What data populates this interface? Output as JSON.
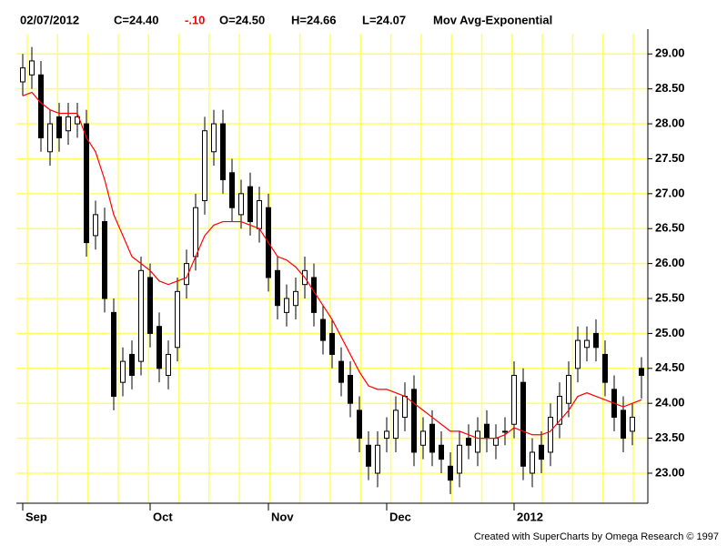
{
  "chart_data": {
    "type": "candlestick",
    "header": {
      "date": "02/07/2012",
      "close": "C=24.40",
      "change": "-.10",
      "open": "O=24.50",
      "high": "H=24.66",
      "low": "L=24.07",
      "study": "Mov Avg-Exponential"
    },
    "footer": "Created with SuperCharts by Omega Research © 1997",
    "categories": [
      "Sep",
      null,
      null,
      null,
      null,
      null,
      null,
      null,
      null,
      null,
      null,
      null,
      null,
      null,
      "Oct",
      null,
      null,
      null,
      null,
      null,
      null,
      null,
      null,
      null,
      null,
      null,
      null,
      "Nov",
      null,
      null,
      null,
      null,
      null,
      null,
      null,
      null,
      null,
      null,
      null,
      null,
      "Dec",
      null,
      null,
      null,
      null,
      null,
      null,
      null,
      null,
      null,
      null,
      null,
      null,
      null,
      "2012",
      null,
      null,
      null,
      null,
      null,
      null,
      null,
      null,
      null,
      null,
      null,
      null,
      null,
      null
    ],
    "open": [
      28.6,
      28.7,
      28.7,
      27.6,
      28.1,
      27.9,
      28.0,
      28.0,
      26.4,
      26.6,
      25.3,
      24.3,
      24.7,
      24.6,
      25.8,
      25.1,
      24.4,
      24.8,
      25.7,
      26.1,
      26.9,
      27.6,
      28.0,
      27.3,
      26.7,
      27.1,
      26.5,
      26.8,
      25.9,
      25.3,
      25.4,
      25.7,
      25.8,
      25.2,
      25.0,
      24.6,
      24.4,
      23.9,
      23.4,
      23.0,
      23.5,
      23.5,
      23.8,
      24.2,
      23.4,
      23.7,
      23.4,
      23.1,
      23.0,
      23.5,
      23.3,
      23.7,
      23.4,
      23.6,
      23.7,
      24.3,
      23.0,
      23.4,
      23.3,
      23.7,
      24.0,
      24.5,
      24.8,
      25.0,
      24.7,
      24.2,
      23.9,
      23.6,
      24.5
    ],
    "high": [
      29.0,
      29.1,
      28.9,
      28.2,
      28.3,
      28.3,
      28.3,
      28.2,
      26.9,
      26.8,
      25.5,
      24.8,
      24.9,
      26.1,
      26.0,
      25.3,
      24.9,
      25.8,
      26.2,
      27.0,
      28.1,
      28.2,
      28.2,
      27.5,
      27.2,
      27.3,
      27.1,
      27.0,
      26.1,
      25.7,
      25.8,
      26.1,
      26.0,
      25.4,
      25.2,
      24.8,
      24.6,
      24.1,
      23.6,
      23.6,
      23.8,
      24.1,
      24.3,
      24.4,
      23.8,
      23.9,
      23.6,
      23.3,
      23.6,
      23.7,
      23.8,
      23.9,
      23.7,
      23.8,
      24.6,
      24.5,
      23.5,
      23.6,
      24.0,
      24.3,
      24.6,
      25.1,
      25.1,
      25.2,
      24.9,
      24.4,
      24.1,
      24.0,
      24.66
    ],
    "low": [
      28.4,
      28.5,
      27.6,
      27.4,
      27.6,
      27.7,
      27.8,
      26.1,
      26.2,
      25.3,
      23.9,
      24.1,
      24.2,
      24.4,
      24.8,
      24.3,
      24.2,
      24.6,
      25.5,
      25.9,
      26.7,
      27.4,
      27.0,
      26.6,
      26.5,
      26.4,
      26.3,
      25.6,
      25.2,
      25.1,
      25.2,
      25.5,
      25.1,
      24.7,
      24.5,
      24.1,
      23.8,
      23.3,
      22.9,
      22.8,
      23.3,
      23.3,
      23.6,
      23.1,
      23.2,
      23.1,
      23.0,
      22.7,
      22.8,
      23.2,
      23.1,
      23.3,
      23.2,
      23.4,
      23.5,
      22.9,
      22.8,
      23.0,
      23.1,
      23.5,
      23.8,
      24.3,
      24.6,
      24.6,
      24.1,
      23.6,
      23.3,
      23.4,
      24.07
    ],
    "close": [
      28.8,
      28.9,
      27.8,
      28.0,
      27.8,
      28.1,
      28.1,
      26.3,
      26.7,
      25.5,
      24.1,
      24.6,
      24.4,
      25.9,
      25.0,
      24.5,
      24.7,
      25.6,
      26.0,
      26.8,
      27.9,
      28.0,
      27.2,
      26.8,
      27.0,
      26.6,
      26.9,
      25.8,
      25.4,
      25.5,
      25.6,
      25.9,
      25.3,
      24.9,
      24.7,
      24.3,
      24.0,
      23.5,
      23.1,
      23.4,
      23.6,
      23.9,
      24.1,
      23.3,
      23.6,
      23.3,
      23.2,
      22.9,
      23.4,
      23.4,
      23.6,
      23.5,
      23.5,
      23.6,
      24.4,
      23.1,
      23.3,
      23.2,
      23.8,
      24.1,
      24.4,
      24.9,
      24.9,
      24.8,
      24.3,
      23.8,
      23.5,
      23.8,
      24.4
    ],
    "ema": {
      "color": "#ff0000",
      "values": [
        28.4,
        28.45,
        28.3,
        28.2,
        28.15,
        28.15,
        28.15,
        27.8,
        27.6,
        27.2,
        26.7,
        26.4,
        26.1,
        26.0,
        25.9,
        25.75,
        25.7,
        25.75,
        25.8,
        26.1,
        26.4,
        26.55,
        26.6,
        26.6,
        26.6,
        26.55,
        26.5,
        26.3,
        26.1,
        26.05,
        25.95,
        25.8,
        25.6,
        25.4,
        25.2,
        24.95,
        24.7,
        24.45,
        24.25,
        24.2,
        24.2,
        24.15,
        24.1,
        24.0,
        23.9,
        23.8,
        23.7,
        23.6,
        23.6,
        23.55,
        23.5,
        23.5,
        23.5,
        23.55,
        23.65,
        23.6,
        23.55,
        23.55,
        23.6,
        23.75,
        23.9,
        24.1,
        24.15,
        24.1,
        24.05,
        24.0,
        23.95,
        24.0,
        24.05
      ]
    },
    "change_color": "#ff0000",
    "candle_color": "#000000",
    "grid_color": "#ffff66",
    "grid": true,
    "ylim": [
      22.57,
      29.29
    ],
    "yticks": [
      {
        "value": 23,
        "label": "23.00"
      },
      {
        "value": 23.5,
        "label": "23.50"
      },
      {
        "value": 24,
        "label": "24.00"
      },
      {
        "value": 24.5,
        "label": "24.50"
      },
      {
        "value": 25,
        "label": "25.00"
      },
      {
        "value": 25.5,
        "label": "25.50"
      },
      {
        "value": 26,
        "label": "26.00"
      },
      {
        "value": 26.5,
        "label": "26.50"
      },
      {
        "value": 27,
        "label": "27.00"
      },
      {
        "value": 27.5,
        "label": "27.50"
      },
      {
        "value": 28,
        "label": "28.00"
      },
      {
        "value": 28.5,
        "label": "28.50"
      },
      {
        "value": 29,
        "label": "29.00"
      }
    ]
  }
}
